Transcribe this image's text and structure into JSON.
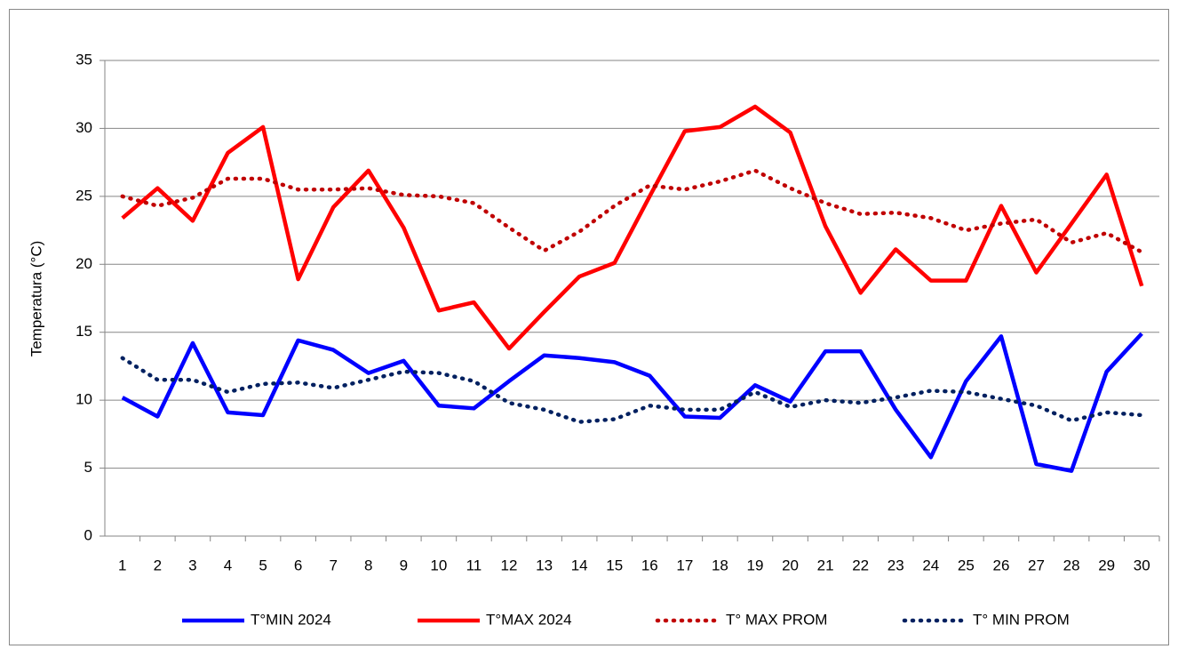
{
  "chart_data": {
    "type": "line",
    "y_label": "Temperatura (°C)",
    "categories": [
      "1",
      "2",
      "3",
      "4",
      "5",
      "6",
      "7",
      "8",
      "9",
      "10",
      "11",
      "12",
      "13",
      "14",
      "15",
      "16",
      "17",
      "18",
      "19",
      "20",
      "21",
      "22",
      "23",
      "24",
      "25",
      "26",
      "27",
      "28",
      "29",
      "30"
    ],
    "series": [
      {
        "name": "T°MIN 2024",
        "color": "#0000ff",
        "style": "solid",
        "values": [
          10.2,
          8.8,
          14.2,
          9.1,
          8.9,
          14.4,
          13.7,
          12.0,
          12.9,
          9.6,
          9.4,
          11.4,
          13.3,
          13.1,
          12.8,
          11.8,
          8.8,
          8.7,
          11.1,
          9.9,
          13.6,
          13.6,
          9.3,
          5.8,
          11.4,
          14.7,
          5.3,
          4.8,
          12.1,
          14.9
        ]
      },
      {
        "name": "T°MAX 2024",
        "color": "#ff0000",
        "style": "solid",
        "values": [
          23.4,
          25.6,
          23.2,
          28.2,
          30.1,
          18.9,
          24.2,
          26.9,
          22.7,
          16.6,
          17.2,
          13.8,
          16.5,
          19.1,
          20.1,
          25.0,
          29.8,
          30.1,
          31.6,
          29.7,
          22.8,
          17.9,
          21.1,
          18.8,
          18.8,
          24.3,
          19.4,
          23.0,
          26.6,
          18.4
        ]
      },
      {
        "name": "T° MAX PROM",
        "color": "#c00000",
        "style": "dotted",
        "values": [
          25.0,
          24.3,
          24.9,
          26.3,
          26.3,
          25.5,
          25.5,
          25.6,
          25.1,
          25.0,
          24.5,
          22.7,
          21.0,
          22.4,
          24.3,
          25.8,
          25.5,
          26.1,
          26.9,
          25.6,
          24.5,
          23.7,
          23.8,
          23.4,
          22.5,
          23.0,
          23.3,
          21.6,
          22.3,
          20.9
        ]
      },
      {
        "name": "T° MIN PROM",
        "color": "#002060",
        "style": "dotted",
        "values": [
          13.1,
          11.5,
          11.5,
          10.6,
          11.2,
          11.3,
          10.9,
          11.5,
          12.1,
          12.0,
          11.4,
          9.8,
          9.3,
          8.4,
          8.6,
          9.6,
          9.3,
          9.3,
          10.6,
          9.5,
          10.0,
          9.8,
          10.2,
          10.7,
          10.6,
          10.1,
          9.6,
          8.5,
          9.1,
          8.9
        ]
      }
    ],
    "ylim": [
      0,
      35
    ],
    "yticks": [
      0,
      5,
      10,
      15,
      20,
      25,
      30,
      35
    ],
    "grid": true,
    "legend": "bottom"
  }
}
